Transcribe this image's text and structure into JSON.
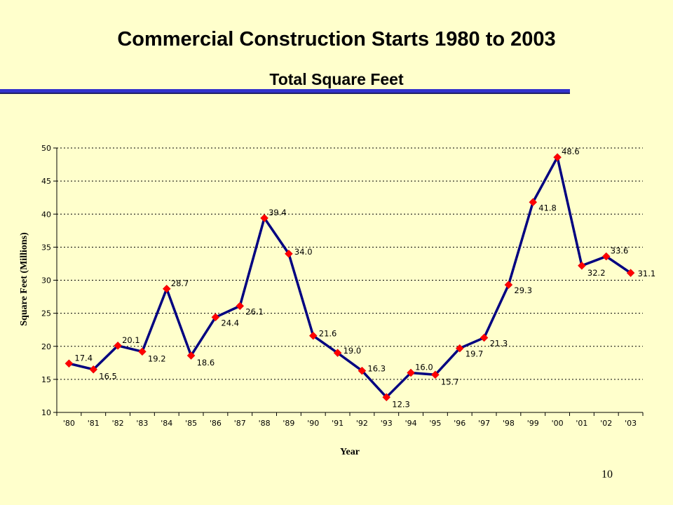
{
  "slide": {
    "title": "Commercial Construction Starts 1980 to 2003",
    "subtitle": "Total Square Feet",
    "page_number": "10"
  },
  "colors": {
    "background": "#ffffcc",
    "title_rule": "#3333cc",
    "series_line": "#000080",
    "marker": "#ff0000"
  },
  "chart_data": {
    "type": "line",
    "title": "",
    "xlabel": "Year",
    "ylabel": "Square Feet (Millions)",
    "ylim": [
      10,
      50
    ],
    "yticks": [
      10,
      15,
      20,
      25,
      30,
      35,
      40,
      45,
      50
    ],
    "grid": "horizontal-dotted",
    "legend": "none",
    "categories": [
      "'80",
      "'81",
      "'82",
      "'83",
      "'84",
      "'85",
      "'86",
      "'87",
      "'88",
      "'89",
      "'90",
      "'91",
      "'92",
      "'93",
      "'94",
      "'95",
      "'96",
      "'97",
      "'98",
      "'99",
      "'00",
      "'01",
      "'02",
      "'03"
    ],
    "series": [
      {
        "values": [
          17.4,
          16.5,
          20.1,
          19.2,
          28.7,
          18.6,
          24.4,
          26.1,
          39.4,
          34.0,
          21.6,
          19.0,
          16.3,
          12.3,
          16.0,
          15.7,
          19.7,
          21.3,
          29.3,
          41.8,
          48.6,
          32.2,
          33.6,
          31.1
        ],
        "labels": [
          "17.4",
          "16.5",
          "20.1",
          "19.2",
          "28.7",
          "18.6",
          "24.4",
          "26.1",
          "39.4",
          "34.0",
          "21.6",
          "19.0",
          "16.3",
          "12.3",
          "16.0",
          "15.7",
          "19.7",
          "21.3",
          "29.3",
          "41.8",
          "48.6",
          "32.2",
          "33.6",
          "31.1"
        ]
      }
    ]
  }
}
